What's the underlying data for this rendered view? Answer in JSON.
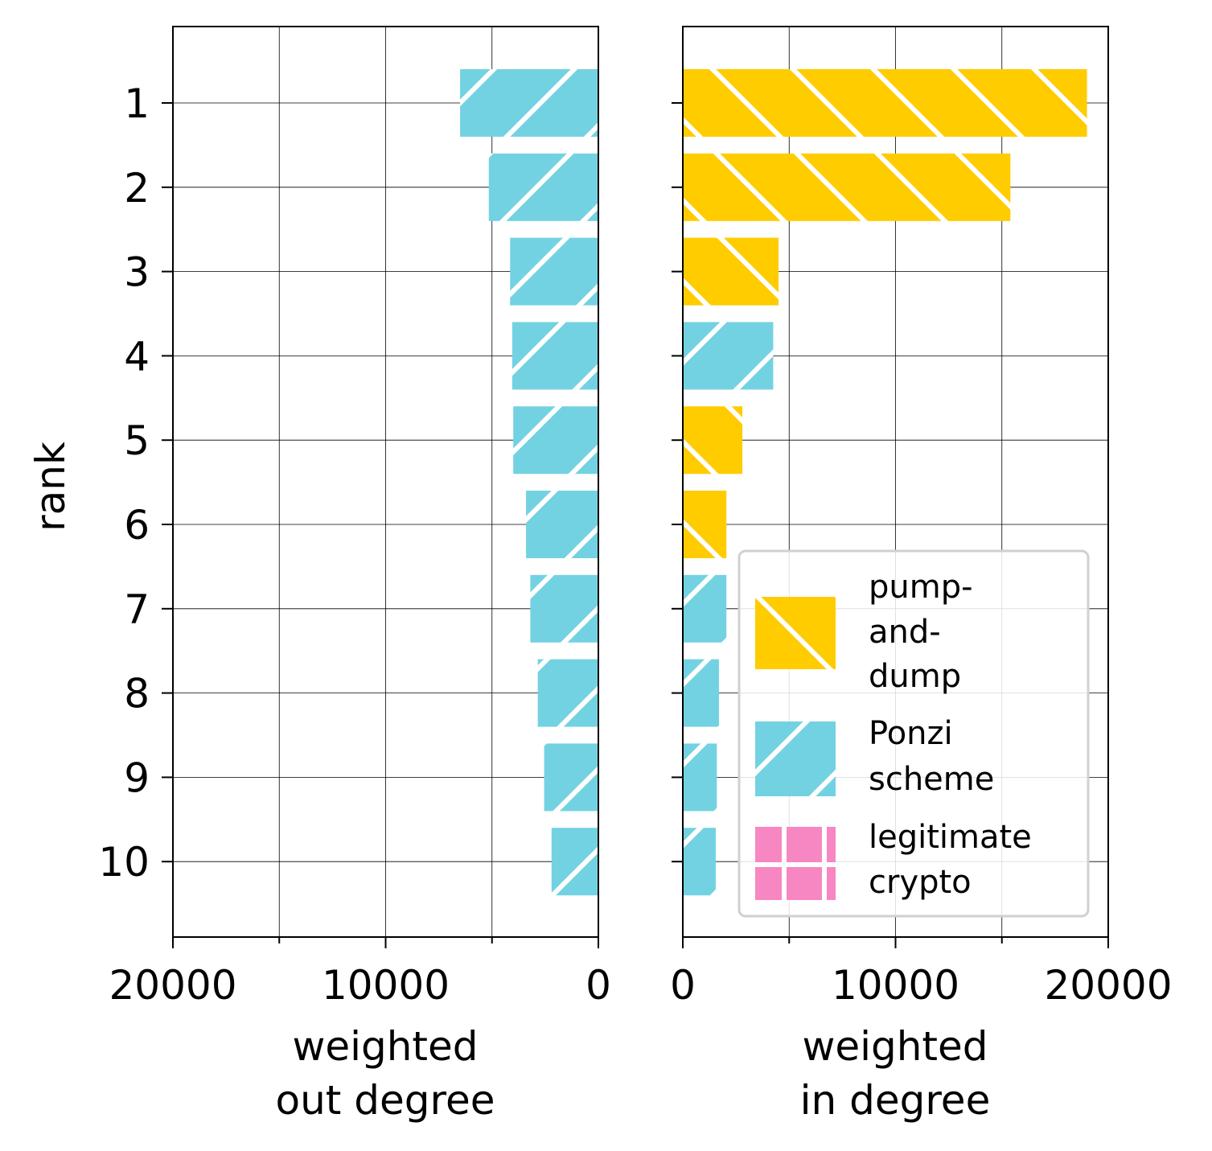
{
  "colors": {
    "pump_and_dump": "#ffcc00",
    "ponzi": "#73d2e2",
    "legitimate": "#f787c2"
  },
  "chart_data": [
    {
      "type": "bar",
      "orientation": "horizontal",
      "xaxis_inverted": true,
      "ylabel": "rank",
      "xlabel_lines": [
        "weighted",
        "out degree"
      ],
      "xlim": [
        20000,
        0
      ],
      "xticks": [
        "20000",
        "10000",
        "0"
      ],
      "grid": true,
      "categories": [
        "1",
        "2",
        "3",
        "4",
        "5",
        "6",
        "7",
        "8",
        "9",
        "10"
      ],
      "values": [
        6500,
        5150,
        4150,
        4050,
        4000,
        3400,
        3200,
        2850,
        2550,
        2200
      ],
      "bar_classes": [
        "Ponzi scheme",
        "Ponzi scheme",
        "Ponzi scheme",
        "Ponzi scheme",
        "Ponzi scheme",
        "Ponzi scheme",
        "Ponzi scheme",
        "Ponzi scheme",
        "Ponzi scheme",
        "Ponzi scheme"
      ]
    },
    {
      "type": "bar",
      "orientation": "horizontal",
      "xlabel_lines": [
        "weighted",
        "in degree"
      ],
      "xlim": [
        0,
        20000
      ],
      "xticks": [
        "0",
        "10000",
        "20000"
      ],
      "grid": true,
      "categories": [
        "1",
        "2",
        "3",
        "4",
        "5",
        "6",
        "7",
        "8",
        "9",
        "10"
      ],
      "values": [
        19000,
        15400,
        4500,
        4250,
        2800,
        2050,
        2050,
        1700,
        1600,
        1550
      ],
      "bar_classes": [
        "pump-and-dump",
        "pump-and-dump",
        "pump-and-dump",
        "Ponzi scheme",
        "pump-and-dump",
        "pump-and-dump",
        "Ponzi scheme",
        "Ponzi scheme",
        "Ponzi scheme",
        "Ponzi scheme"
      ],
      "legend": {
        "placement": "lower-right",
        "entries": [
          {
            "label_lines": [
              "pump-",
              "and-",
              "dump"
            ],
            "class": "pump-and-dump"
          },
          {
            "label_lines": [
              "Ponzi",
              "scheme"
            ],
            "class": "Ponzi scheme"
          },
          {
            "label_lines": [
              "legitimate",
              "crypto"
            ],
            "class": "legitimate"
          }
        ]
      }
    }
  ]
}
